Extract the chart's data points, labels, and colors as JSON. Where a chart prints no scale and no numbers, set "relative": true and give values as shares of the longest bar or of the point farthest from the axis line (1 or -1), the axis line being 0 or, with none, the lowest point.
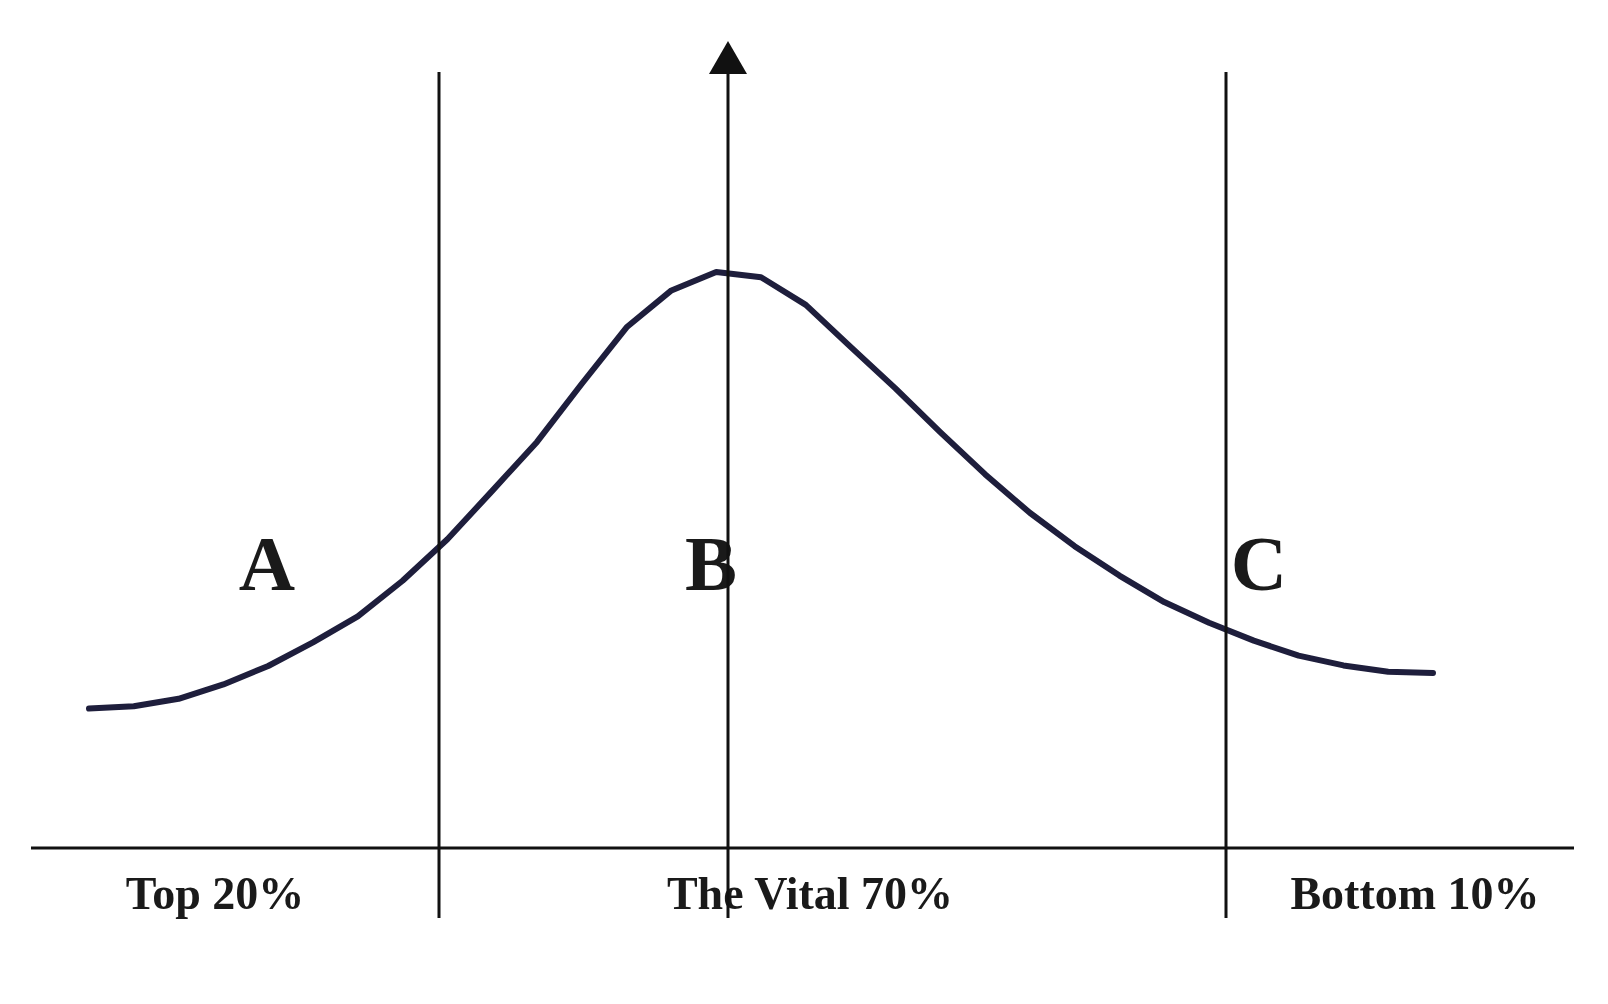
{
  "chart_data": {
    "type": "line",
    "relative": true,
    "categories": [
      null,
      null,
      null,
      null,
      null,
      null,
      null,
      null,
      null,
      null,
      null,
      null,
      null,
      null,
      null,
      null,
      null,
      null,
      null,
      null,
      null,
      null,
      null,
      null,
      null,
      null,
      null,
      null,
      null,
      null,
      null
    ],
    "series": [
      {
        "color": "#1e1e3c",
        "values": [
          0.242,
          0.246,
          0.259,
          0.284,
          0.316,
          0.357,
          0.402,
          0.464,
          0.536,
          0.62,
          0.705,
          0.806,
          0.904,
          0.968,
          1,
          0.991,
          0.943,
          0.87,
          0.798,
          0.722,
          0.649,
          0.582,
          0.524,
          0.473,
          0.427,
          0.391,
          0.36,
          0.334,
          0.317,
          0.306,
          0.304
        ]
      }
    ],
    "annotations": [
      "A",
      "B",
      "C",
      "Top 20%",
      "The Vital 70%",
      "Bottom 10%"
    ]
  }
}
